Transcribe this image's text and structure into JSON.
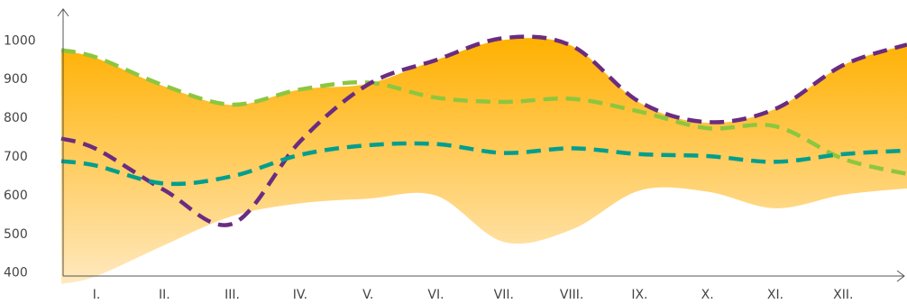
{
  "chart_data": {
    "type": "area",
    "title": "",
    "xlabel": "",
    "ylabel": "",
    "categories": [
      "I.",
      "II.",
      "III.",
      "IV.",
      "V.",
      "VI.",
      "VII.",
      "VIII.",
      "IX.",
      "X.",
      "XI.",
      "XII."
    ],
    "ylim": [
      390,
      1080
    ],
    "yticks": [
      400,
      500,
      600,
      700,
      800,
      900,
      1000
    ],
    "grid": false,
    "legend": "none",
    "band": {
      "upper": [
        953,
        880,
        832,
        872,
        887,
        948,
        1000,
        985,
        838,
        786,
        822,
        935
      ],
      "lower": [
        390,
        470,
        545,
        578,
        590,
        598,
        478,
        510,
        611,
        608,
        565,
        600
      ],
      "color_top": "#FFB000",
      "color_bottom": "#FFE9BF"
    },
    "series": [
      {
        "values": [
          955,
          882,
          833,
          872,
          890,
          851,
          840,
          848,
          815,
          772,
          777,
          693
        ],
        "color": "#8DC63F"
      },
      {
        "values": [
          718,
          612,
          525,
          738,
          885,
          948,
          1005,
          985,
          840,
          788,
          822,
          935
        ],
        "color": "#6A2C80"
      },
      {
        "values": [
          675,
          629,
          648,
          703,
          728,
          731,
          708,
          720,
          705,
          700,
          685,
          705
        ],
        "color": "#009E8E"
      }
    ]
  }
}
